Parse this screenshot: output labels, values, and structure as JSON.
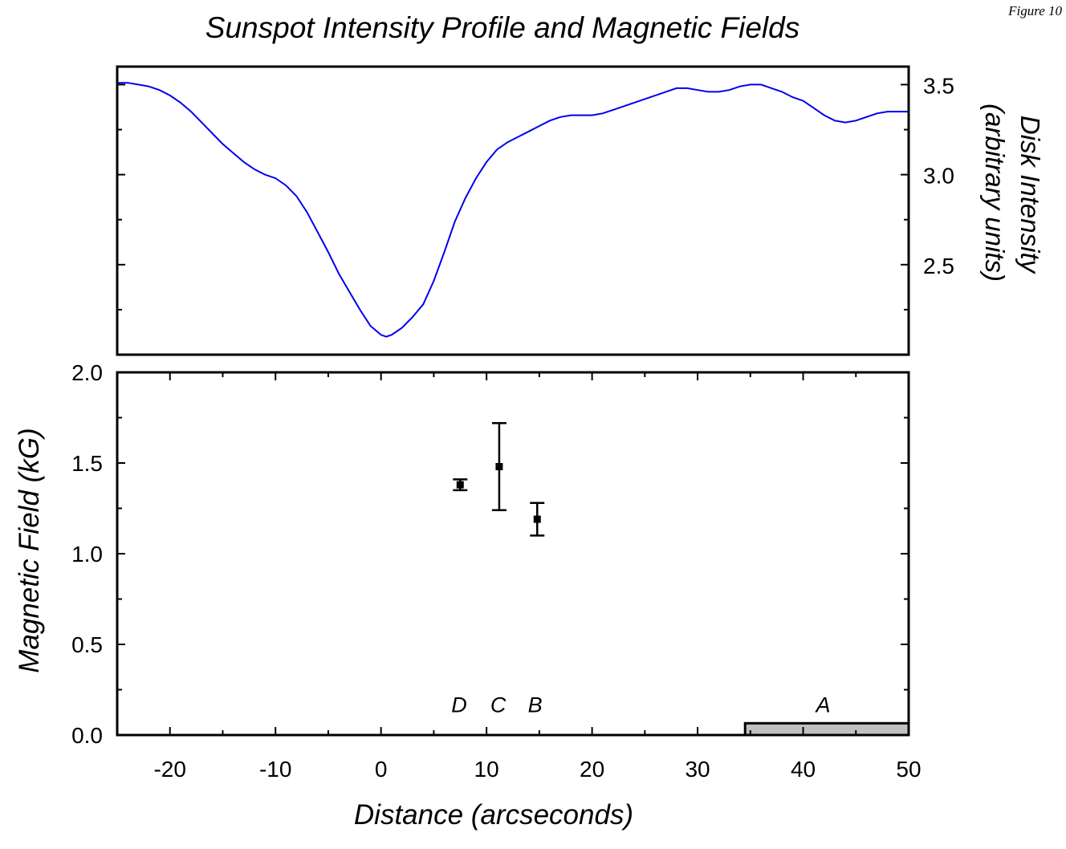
{
  "figure_label": "Figure 10",
  "chart_data": [
    {
      "type": "line",
      "title": "Sunspot Intensity Profile and Magnetic Fields",
      "xlabel": "",
      "ylabel": "Disk Intensity",
      "ylabel2": "(arbitrary units)",
      "xlim": [
        -25,
        50
      ],
      "ylim": [
        2.0,
        3.6
      ],
      "y_ticks": [
        2.5,
        3.0,
        3.5
      ],
      "series": [
        {
          "color": "#0000ee",
          "points": [
            [
              -25,
              3.51
            ],
            [
              -24,
              3.51
            ],
            [
              -23,
              3.5
            ],
            [
              -22,
              3.49
            ],
            [
              -21,
              3.47
            ],
            [
              -20,
              3.44
            ],
            [
              -19,
              3.4
            ],
            [
              -18,
              3.35
            ],
            [
              -17,
              3.29
            ],
            [
              -16,
              3.23
            ],
            [
              -15,
              3.17
            ],
            [
              -14,
              3.12
            ],
            [
              -13,
              3.07
            ],
            [
              -12,
              3.03
            ],
            [
              -11,
              3.0
            ],
            [
              -10,
              2.98
            ],
            [
              -9,
              2.94
            ],
            [
              -8,
              2.88
            ],
            [
              -7,
              2.79
            ],
            [
              -6,
              2.68
            ],
            [
              -5,
              2.57
            ],
            [
              -4,
              2.45
            ],
            [
              -3,
              2.35
            ],
            [
              -2,
              2.25
            ],
            [
              -1,
              2.16
            ],
            [
              0,
              2.11
            ],
            [
              0.5,
              2.1
            ],
            [
              1,
              2.11
            ],
            [
              2,
              2.15
            ],
            [
              3,
              2.21
            ],
            [
              4,
              2.28
            ],
            [
              5,
              2.41
            ],
            [
              6,
              2.57
            ],
            [
              7,
              2.74
            ],
            [
              8,
              2.87
            ],
            [
              9,
              2.98
            ],
            [
              10,
              3.07
            ],
            [
              11,
              3.14
            ],
            [
              12,
              3.18
            ],
            [
              13,
              3.21
            ],
            [
              14,
              3.24
            ],
            [
              15,
              3.27
            ],
            [
              16,
              3.3
            ],
            [
              17,
              3.32
            ],
            [
              18,
              3.33
            ],
            [
              19,
              3.33
            ],
            [
              20,
              3.33
            ],
            [
              21,
              3.34
            ],
            [
              22,
              3.36
            ],
            [
              23,
              3.38
            ],
            [
              24,
              3.4
            ],
            [
              25,
              3.42
            ],
            [
              26,
              3.44
            ],
            [
              27,
              3.46
            ],
            [
              28,
              3.48
            ],
            [
              29,
              3.48
            ],
            [
              30,
              3.47
            ],
            [
              31,
              3.46
            ],
            [
              32,
              3.46
            ],
            [
              33,
              3.47
            ],
            [
              34,
              3.49
            ],
            [
              35,
              3.5
            ],
            [
              36,
              3.5
            ],
            [
              37,
              3.48
            ],
            [
              38,
              3.46
            ],
            [
              39,
              3.43
            ],
            [
              40,
              3.41
            ],
            [
              41,
              3.37
            ],
            [
              42,
              3.33
            ],
            [
              43,
              3.3
            ],
            [
              44,
              3.29
            ],
            [
              45,
              3.3
            ],
            [
              46,
              3.32
            ],
            [
              47,
              3.34
            ],
            [
              48,
              3.35
            ],
            [
              49,
              3.35
            ],
            [
              50,
              3.35
            ]
          ]
        }
      ],
      "grid": false
    },
    {
      "type": "scatter",
      "xlabel": "Distance (arcseconds)",
      "ylabel": "Magnetic Field (kG)",
      "xlim": [
        -25,
        50
      ],
      "ylim": [
        0.0,
        2.0
      ],
      "x_ticks": [
        -20,
        -10,
        0,
        10,
        20,
        30,
        40,
        50
      ],
      "y_ticks": [
        0.0,
        0.5,
        1.0,
        1.5,
        2.0
      ],
      "series": [
        {
          "points": [
            {
              "x": 7.5,
              "y": 1.38,
              "err_low": 1.35,
              "err_high": 1.41
            },
            {
              "x": 11.2,
              "y": 1.48,
              "err_low": 1.24,
              "err_high": 1.72
            },
            {
              "x": 14.8,
              "y": 1.19,
              "err_low": 1.1,
              "err_high": 1.28
            }
          ]
        }
      ],
      "annotations": [
        {
          "text": "D",
          "x": 7.4,
          "y": 0.17
        },
        {
          "text": "C",
          "x": 11.1,
          "y": 0.17
        },
        {
          "text": "B",
          "x": 14.6,
          "y": 0.17
        },
        {
          "text": "A",
          "x": 41.9,
          "y": 0.17
        }
      ],
      "region": {
        "label": "A",
        "x_start": 34.5,
        "x_end": 50,
        "y_start": 0.0,
        "y_end": 0.065,
        "color": "#c0c0c0"
      },
      "grid": false
    }
  ]
}
